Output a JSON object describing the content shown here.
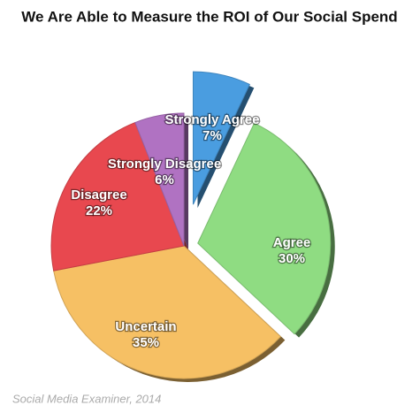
{
  "chart_data": {
    "type": "pie",
    "title": "We Are Able to Measure the ROI of Our Social Spend",
    "categories": [
      "Strongly Agree",
      "Agree",
      "Uncertain",
      "Disagree",
      "Strongly Disagree"
    ],
    "values": [
      7,
      30,
      35,
      22,
      6
    ],
    "value_labels": [
      "7%",
      "30%",
      "35%",
      "22%",
      "6%"
    ],
    "colors": [
      "#4a9de0",
      "#8fdc82",
      "#f6c064",
      "#e8484f",
      "#b072c2"
    ],
    "source": "Social Media Examiner, 2014"
  }
}
